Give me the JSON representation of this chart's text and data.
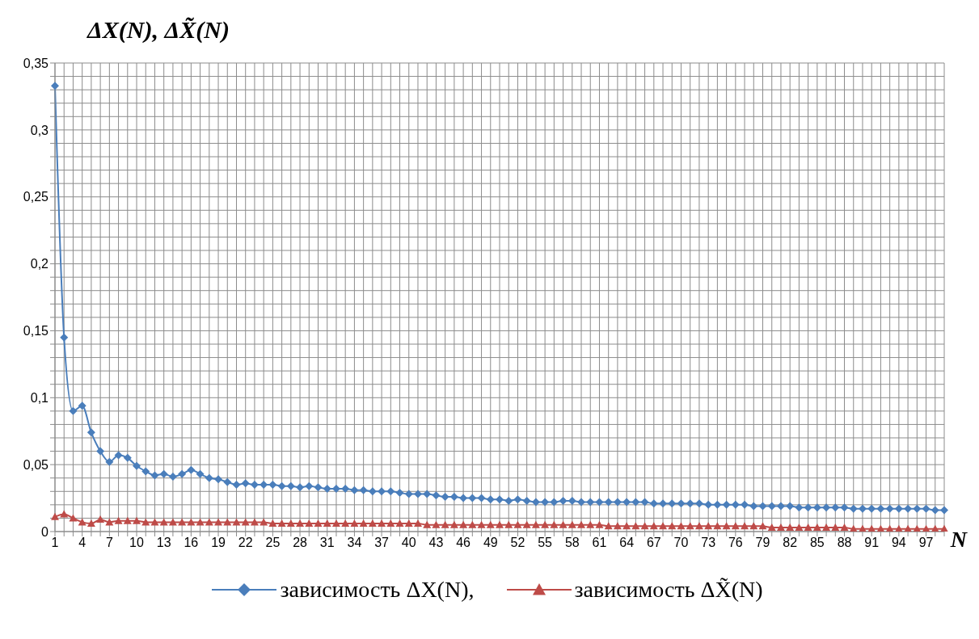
{
  "chart_data": {
    "type": "line",
    "ylabel": "ΔX(N), ΔX̃(N)",
    "xlabel": "N",
    "categories": [
      "1",
      null,
      null,
      "4",
      null,
      null,
      "7",
      null,
      null,
      "10",
      null,
      null,
      "13",
      null,
      null,
      "16",
      null,
      null,
      "19",
      null,
      null,
      "22",
      null,
      null,
      "25",
      null,
      null,
      "28",
      null,
      null,
      "31",
      null,
      null,
      "34",
      null,
      null,
      "37",
      null,
      null,
      "40",
      null,
      null,
      "43",
      null,
      null,
      "46",
      null,
      null,
      "49",
      null,
      null,
      "52",
      null,
      null,
      "55",
      null,
      null,
      "58",
      null,
      null,
      "61",
      null,
      null,
      "64",
      null,
      null,
      "67",
      null,
      null,
      "70",
      null,
      null,
      "73",
      null,
      null,
      "76",
      null,
      null,
      "79",
      null,
      null,
      "82",
      null,
      null,
      "85",
      null,
      null,
      "88",
      null,
      null,
      "91",
      null,
      null,
      "94",
      null,
      null,
      "97",
      null,
      null
    ],
    "series": [
      {
        "name": "зависимость ΔX(N),",
        "color": "#4a7ebb",
        "marker": "diamond",
        "values": [
          0.333,
          0.145,
          0.09,
          0.094,
          0.074,
          0.06,
          0.052,
          0.057,
          0.055,
          0.049,
          0.045,
          0.042,
          0.043,
          0.041,
          0.043,
          0.046,
          0.043,
          0.04,
          0.039,
          0.037,
          0.035,
          0.036,
          0.035,
          0.035,
          0.035,
          0.034,
          0.034,
          0.033,
          0.034,
          0.033,
          0.032,
          0.032,
          0.032,
          0.031,
          0.031,
          0.03,
          0.03,
          0.03,
          0.029,
          0.028,
          0.028,
          0.028,
          0.027,
          0.026,
          0.026,
          0.025,
          0.025,
          0.025,
          0.024,
          0.024,
          0.023,
          0.024,
          0.023,
          0.022,
          0.022,
          0.022,
          0.023,
          0.023,
          0.022,
          0.022,
          0.022,
          0.022,
          0.022,
          0.022,
          0.022,
          0.022,
          0.021,
          0.021,
          0.021,
          0.021,
          0.021,
          0.021,
          0.02,
          0.02,
          0.02,
          0.02,
          0.02,
          0.019,
          0.019,
          0.019,
          0.019,
          0.019,
          0.018,
          0.018,
          0.018,
          0.018,
          0.018,
          0.018,
          0.017,
          0.017,
          0.017,
          0.017,
          0.017,
          0.017,
          0.017,
          0.017,
          0.017,
          0.016,
          0.016
        ]
      },
      {
        "name": "зависимость ΔX̃(N)",
        "color": "#be4b48",
        "marker": "triangle",
        "values": [
          0.011,
          0.013,
          0.01,
          0.007,
          0.006,
          0.009,
          0.007,
          0.008,
          0.008,
          0.008,
          0.007,
          0.007,
          0.007,
          0.007,
          0.007,
          0.007,
          0.007,
          0.007,
          0.007,
          0.007,
          0.007,
          0.007,
          0.007,
          0.007,
          0.006,
          0.006,
          0.006,
          0.006,
          0.006,
          0.006,
          0.006,
          0.006,
          0.006,
          0.006,
          0.006,
          0.006,
          0.006,
          0.006,
          0.006,
          0.006,
          0.006,
          0.005,
          0.005,
          0.005,
          0.005,
          0.005,
          0.005,
          0.005,
          0.005,
          0.005,
          0.005,
          0.005,
          0.005,
          0.005,
          0.005,
          0.005,
          0.005,
          0.005,
          0.005,
          0.005,
          0.005,
          0.004,
          0.004,
          0.004,
          0.004,
          0.004,
          0.004,
          0.004,
          0.004,
          0.004,
          0.004,
          0.004,
          0.004,
          0.004,
          0.004,
          0.004,
          0.004,
          0.004,
          0.004,
          0.003,
          0.003,
          0.003,
          0.003,
          0.003,
          0.003,
          0.003,
          0.003,
          0.003,
          0.002,
          0.002,
          0.002,
          0.002,
          0.002,
          0.002,
          0.002,
          0.002,
          0.002,
          0.002,
          0.002
        ]
      }
    ],
    "ylim": [
      0,
      0.35
    ],
    "yticks": [
      0,
      {
        "value": 0.01,
        "label": null
      },
      {
        "value": 0.02,
        "label": null
      },
      {
        "value": 0.03,
        "label": null
      },
      {
        "value": 0.04,
        "label": null
      },
      {
        "value": 0.05,
        "label": "0,05"
      },
      {
        "value": 0.06,
        "label": null
      },
      {
        "value": 0.07,
        "label": null
      },
      {
        "value": 0.08,
        "label": null
      },
      {
        "value": 0.09,
        "label": null
      },
      {
        "value": 0.1,
        "label": "0,1"
      },
      {
        "value": 0.11,
        "label": null
      },
      {
        "value": 0.12,
        "label": null
      },
      {
        "value": 0.13,
        "label": null
      },
      {
        "value": 0.14,
        "label": null
      },
      {
        "value": 0.15,
        "label": "0,15"
      },
      {
        "value": 0.16,
        "label": null
      },
      {
        "value": 0.17,
        "label": null
      },
      {
        "value": 0.18,
        "label": null
      },
      {
        "value": 0.19,
        "label": null
      },
      {
        "value": 0.2,
        "label": "0,2"
      },
      {
        "value": 0.21,
        "label": null
      },
      {
        "value": 0.22,
        "label": null
      },
      {
        "value": 0.23,
        "label": null
      },
      {
        "value": 0.24,
        "label": null
      },
      {
        "value": 0.25,
        "label": "0,25"
      },
      {
        "value": 0.26,
        "label": null
      },
      {
        "value": 0.27,
        "label": null
      },
      {
        "value": 0.28,
        "label": null
      },
      {
        "value": 0.29,
        "label": null
      },
      {
        "value": 0.3,
        "label": "0,3"
      },
      {
        "value": 0.31,
        "label": null
      },
      {
        "value": 0.32,
        "label": null
      },
      {
        "value": 0.33,
        "label": null
      },
      {
        "value": 0.34,
        "label": null
      },
      {
        "value": 0.35,
        "label": "0,35"
      }
    ],
    "grid": true,
    "legend": "bottom"
  }
}
